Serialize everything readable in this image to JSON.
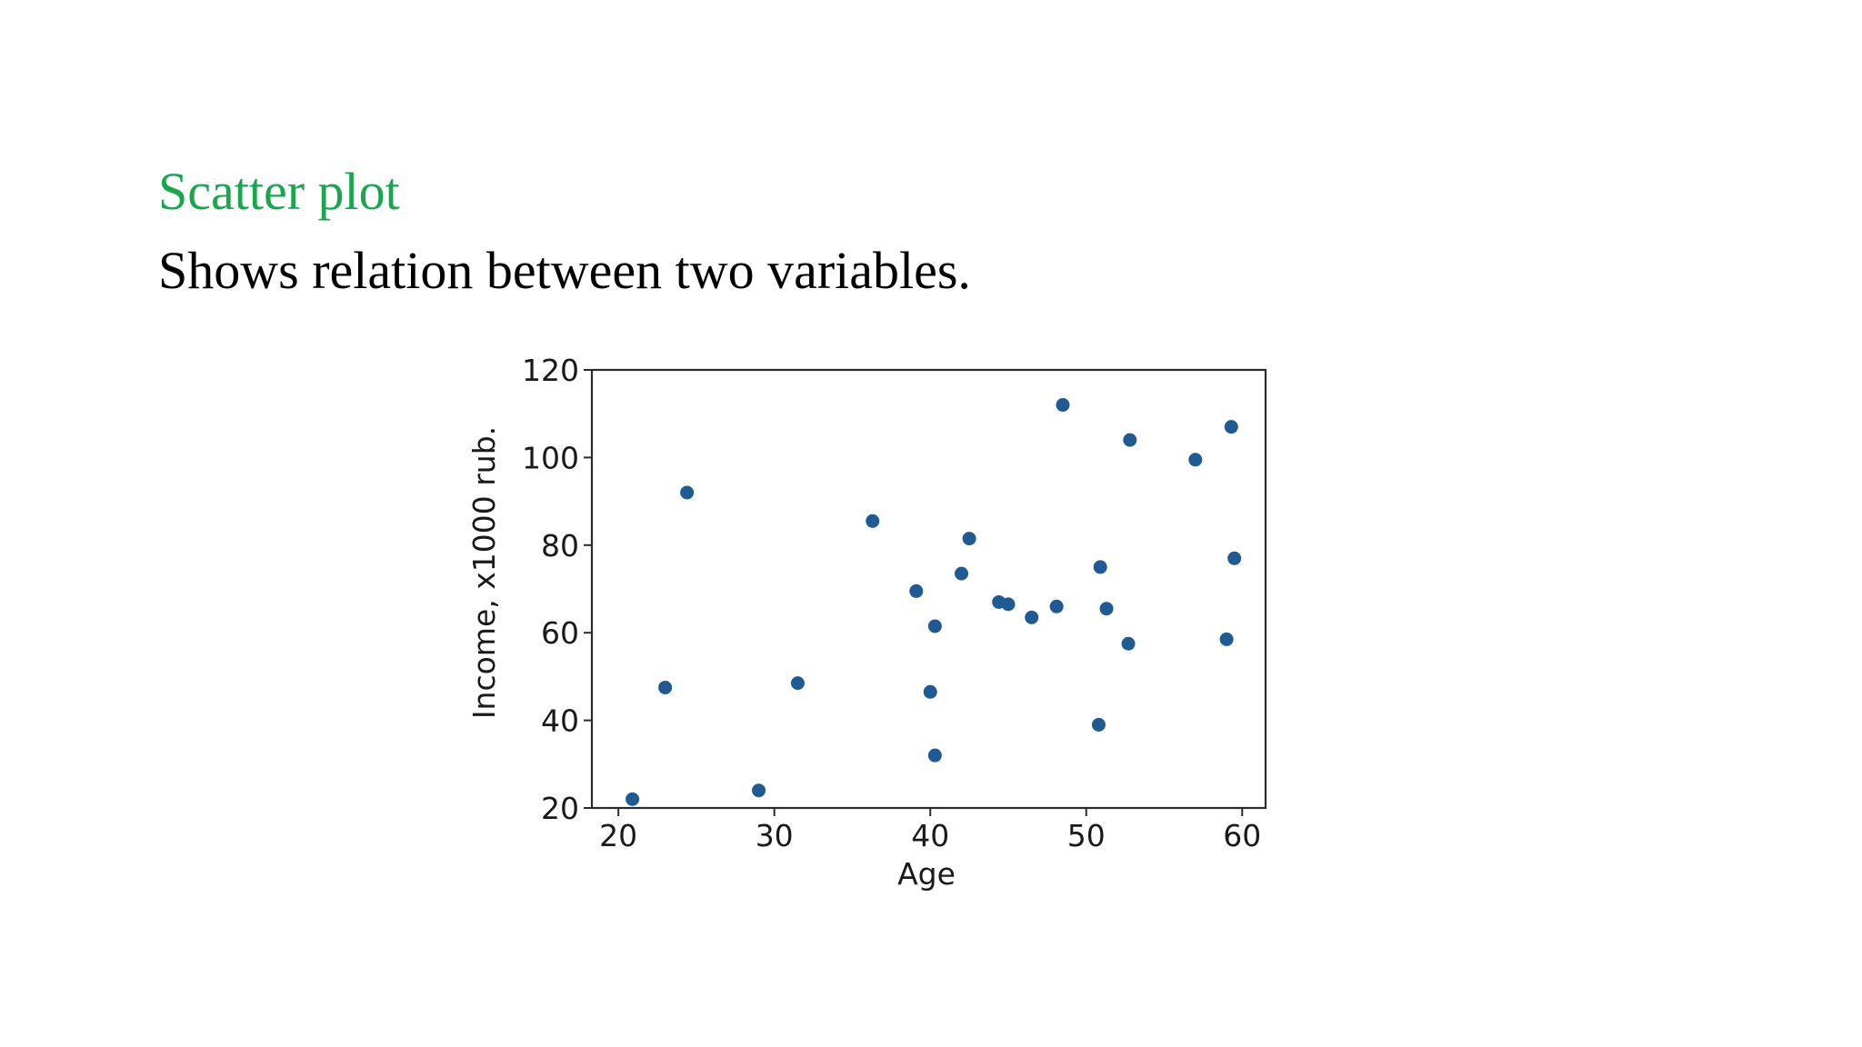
{
  "slide": {
    "title": "Scatter plot",
    "subtitle": "Shows relation between two variables.",
    "title_color": "#1aa64f"
  },
  "chart_data": {
    "type": "scatter",
    "title": "",
    "xlabel": "Age",
    "ylabel": "Income, x1000 rub.",
    "xlim": [
      18.3,
      61.5
    ],
    "ylim": [
      20,
      120
    ],
    "xticks": [
      "20",
      "30",
      "40",
      "50",
      "60"
    ],
    "yticks": [
      "20",
      "40",
      "60",
      "80",
      "100",
      "120"
    ],
    "grid": false,
    "legend": "none",
    "marker_color": "#1f5a92",
    "series": [
      {
        "x": [
          20.9,
          23.0,
          24.4,
          29.0,
          31.5,
          36.3,
          39.1,
          40.0,
          40.3,
          40.3,
          42.0,
          42.5,
          44.4,
          45.0,
          46.5,
          48.1,
          48.5,
          50.8,
          50.9,
          51.3,
          52.7,
          52.8,
          57.0,
          59.0,
          59.3,
          59.5
        ],
        "y": [
          22,
          47.5,
          92,
          24,
          48.5,
          85.5,
          69.5,
          46.5,
          61.5,
          32,
          73.5,
          81.5,
          67,
          66.5,
          63.5,
          66,
          112,
          39,
          75,
          65.5,
          57.5,
          104,
          99.5,
          58.5,
          107,
          77
        ]
      }
    ]
  }
}
